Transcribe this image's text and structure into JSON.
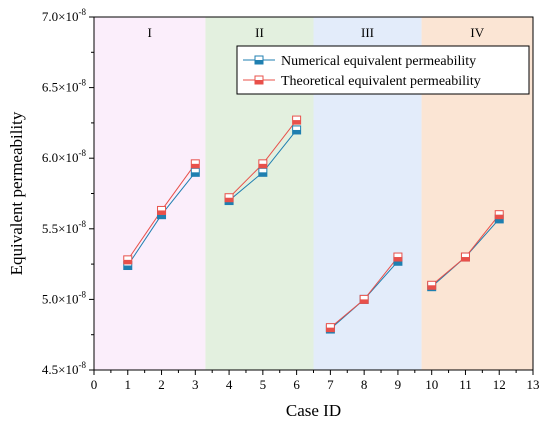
{
  "chart_data": {
    "type": "line",
    "xlabel": "Case ID",
    "ylabel": "Equivalent permeability",
    "xlim": [
      0,
      13
    ],
    "ylim": [
      4.5e-08,
      7e-08
    ],
    "x_ticks": [
      "0",
      "1",
      "2",
      "3",
      "4",
      "5",
      "6",
      "7",
      "8",
      "9",
      "10",
      "11",
      "12",
      "13"
    ],
    "y_ticks": [
      {
        "mantissa": "4.5",
        "exp": "-8"
      },
      {
        "mantissa": "5.0",
        "exp": "-8"
      },
      {
        "mantissa": "5.5",
        "exp": "-8"
      },
      {
        "mantissa": "6.0",
        "exp": "-8"
      },
      {
        "mantissa": "6.5",
        "exp": "-8"
      },
      {
        "mantissa": "7.0",
        "exp": "-8"
      }
    ],
    "regions": [
      {
        "label": "I",
        "x_range": [
          0,
          3.3
        ],
        "color": "#fbeefb"
      },
      {
        "label": "II",
        "x_range": [
          3.3,
          6.5
        ],
        "color": "#e3f0df"
      },
      {
        "label": "III",
        "x_range": [
          6.5,
          9.7
        ],
        "color": "#e3ecfa"
      },
      {
        "label": "IV",
        "x_range": [
          9.7,
          13
        ],
        "color": "#fbe5d4"
      }
    ],
    "series": [
      {
        "name": "Numerical equivalent permeability",
        "color": "#1f7fb0",
        "groups": [
          {
            "x": [
              1,
              2,
              3
            ],
            "y": [
              5.24e-08,
              5.6e-08,
              5.9e-08
            ]
          },
          {
            "x": [
              4,
              5,
              6
            ],
            "y": [
              5.7e-08,
              5.9e-08,
              6.2e-08
            ]
          },
          {
            "x": [
              7,
              8,
              9
            ],
            "y": [
              4.79e-08,
              5e-08,
              5.27e-08
            ]
          },
          {
            "x": [
              10,
              11,
              12
            ],
            "y": [
              5.09e-08,
              5.3e-08,
              5.57e-08
            ]
          }
        ]
      },
      {
        "name": "Theoretical equivalent permeability",
        "color": "#e8504a",
        "groups": [
          {
            "x": [
              1,
              2,
              3
            ],
            "y": [
              5.28e-08,
              5.63e-08,
              5.96e-08
            ]
          },
          {
            "x": [
              4,
              5,
              6
            ],
            "y": [
              5.72e-08,
              5.96e-08,
              6.27e-08
            ]
          },
          {
            "x": [
              7,
              8,
              9
            ],
            "y": [
              4.8e-08,
              5e-08,
              5.3e-08
            ]
          },
          {
            "x": [
              10,
              11,
              12
            ],
            "y": [
              5.1e-08,
              5.3e-08,
              5.6e-08
            ]
          }
        ]
      }
    ],
    "legend_position": "top-right",
    "grid": false
  }
}
